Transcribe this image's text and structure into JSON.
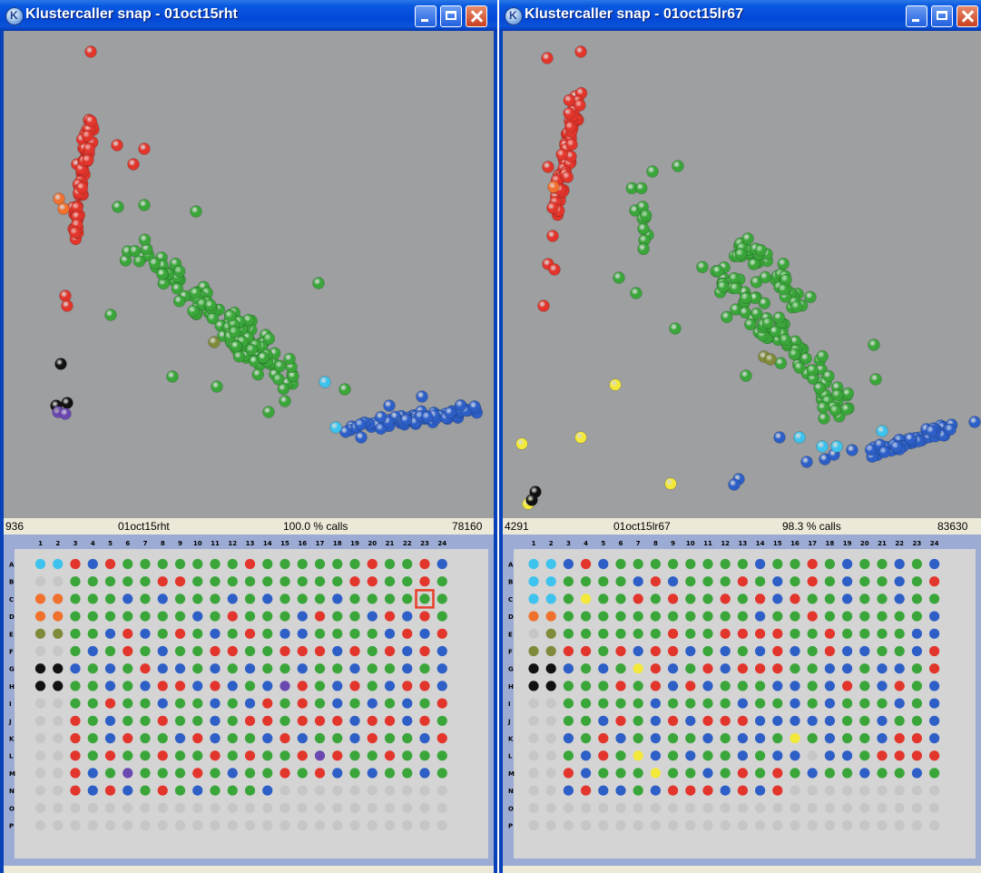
{
  "colors": {
    "AA": "#e2352b",
    "AB": "#3aa63a",
    "BB": "#2d5fc7",
    "orange": "#f0702e",
    "cyan": "#3ec3ee",
    "olive": "#808a3a",
    "black": "#111111",
    "purple": "#6a48b0",
    "yellow": "#f3e93a",
    "nocall": "#c6c6c6"
  },
  "plate": {
    "columns": [
      "1",
      "2",
      "3",
      "4",
      "5",
      "6",
      "7",
      "8",
      "9",
      "10",
      "11",
      "12",
      "13",
      "14",
      "15",
      "16",
      "17",
      "18",
      "19",
      "20",
      "21",
      "22",
      "23",
      "24"
    ],
    "rows": [
      "A",
      "B",
      "C",
      "D",
      "E",
      "F",
      "G",
      "H",
      "I",
      "J",
      "K",
      "L",
      "M",
      "N",
      "O",
      "P"
    ]
  },
  "windows": [
    {
      "title": "Klustercaller snap - 01oct15rht",
      "status": {
        "left": "936",
        "name": "01oct15rht",
        "calls": "100.0 % calls",
        "right": "78160"
      },
      "selected_well": "C23",
      "grid": [
        "CCRBRGGGGGGGRGGGGGGRGGRB",
        "NNGGGGGRRGGGGGGGGGRRGGRG",
        "OOGGGBGBGGGBGBGGGBGGGGGG",
        "OOGGGGGGGBGRGGGBRGGBRBRG",
        "VVGGBRBGRGBGRGBBGGGGBRBR",
        "NNGBGRGBGGRRGGRRRBRGRBRB",
        "KKBGBGRBBGBGBGGBGGBGGBGB",
        "KKGGBGBRRBRBGBPRGBRGBRRB",
        "NNGGRGGBGGBGBRGRGBGBGBGR",
        "NNRGBGGRGGBGRRGRRRBRRBRG",
        "NNRGBRGGBRBGGBRBGGBRGGBR",
        "NNRGRGGRGGRGRGGRPRGGRGGG",
        "NNRBGPGGGRGBGGRGRBGBGGBG",
        "NNRBRBGRGBGGGBNNNNNNNNNN",
        "NNNNNNNNNNNNNNNNNNNNNNNN",
        "NNNNNNNNNNNNNNNNNNNNNNNN"
      ]
    },
    {
      "title": "Klustercaller snap - 01oct15lr67",
      "status": {
        "left": "4291",
        "name": "01oct15lr67",
        "calls": "98.3 % calls",
        "right": "83630"
      },
      "selected_well": "",
      "grid": [
        "CCBRBGGGGGGGGBGGRGBGGBGB",
        "CCGGGGBRBGGGRGBGRGBGGBGR",
        "CCGYGGRGRGGRGRBRGGBGGBGG",
        "OOGGGGGGGGGGGBGGRGGGGGGB",
        "NVGGGGGGRGGRRRRGGRGGGGBB",
        "VVRRGRBRRBGBGBRBGRBBGGBR",
        "KKBGBGYRBGRBRRRGGBBGBBGR",
        "KKGGGRGRBRBGGGBBGBRGBRGB",
        "NNGGGGGBGGGGBGGBGBGGGBGB",
        "NNGGBRGBRBRRRBBBBBGGBGGB",
        "NNBGRBGBGGBGBBGYGBGGBRRB",
        "NNGBRGYBGBGGBGBBNBBGRRRR",
        "NNRBGGGYGGBGRGRGBGGBGGBG",
        "NNBRBBGBRRRBRBRNNNNNNNNN",
        "NNNNNNNNNNNNNNNNNNNNNNNN",
        "NNNNNNNNNNNNNNNNNNNNNNNN"
      ]
    }
  ]
}
